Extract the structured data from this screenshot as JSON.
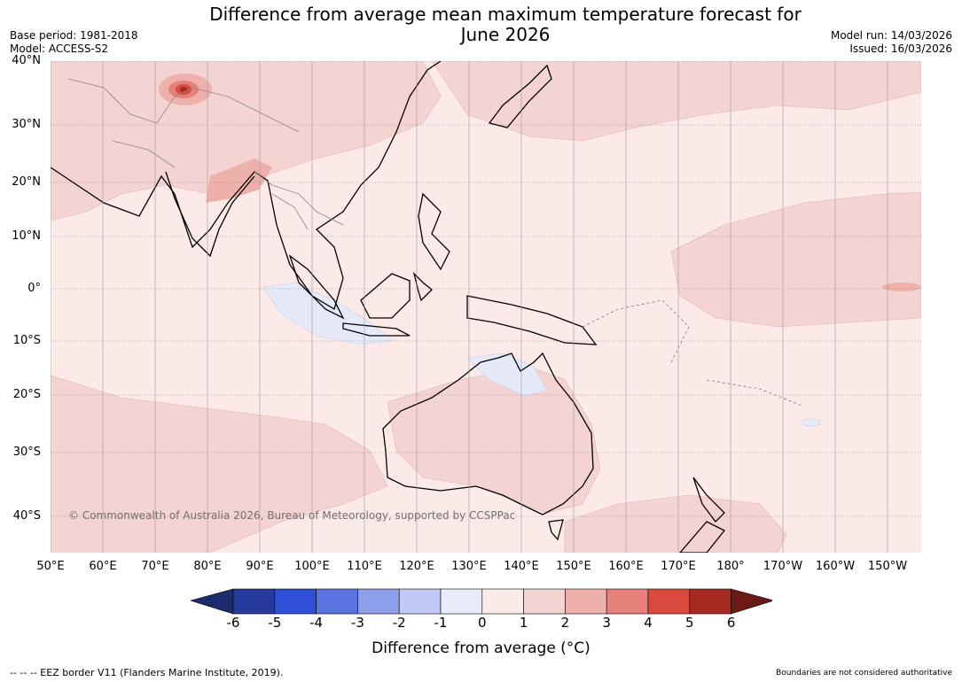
{
  "header": {
    "title_line1": "Difference from average mean maximum temperature forecast for",
    "title_line2": "June 2026",
    "base_period": "Base period: 1981-2018",
    "model": "Model: ACCESS-S2",
    "model_run": "Model run: 14/03/2026",
    "issued": "Issued: 16/03/2026"
  },
  "map": {
    "lat_labels": [
      "40°N",
      "30°N",
      "20°N",
      "10°N",
      "0°",
      "10°S",
      "20°S",
      "30°S",
      "40°S"
    ],
    "lon_labels": [
      "50°E",
      "60°E",
      "70°E",
      "80°E",
      "90°E",
      "100°E",
      "110°E",
      "120°E",
      "130°E",
      "140°E",
      "150°E",
      "160°E",
      "170°E",
      "180°",
      "170°W",
      "160°W",
      "150°W"
    ],
    "copyright": "© Commonwealth of Australia 2026, Bureau of Meteorology, supported by CCSPPac",
    "colors": {
      "ocean_base": "#fbeae8",
      "warm_1_2": "#f4d4d2",
      "warm_2_3": "#eeb0ab",
      "warm_3_4": "#e6807a",
      "warm_4_5": "#d94a3f",
      "warm_5_6": "#a52a22",
      "cool_0_1": "#e6eaf8"
    }
  },
  "colorbar": {
    "ticks": [
      "-6",
      "-5",
      "-4",
      "-3",
      "-2",
      "-1",
      "0",
      "1",
      "2",
      "3",
      "4",
      "5",
      "6"
    ],
    "colors": [
      "#273a9c",
      "#2f4fd6",
      "#5a74e0",
      "#8ea0ea",
      "#c1c9f4",
      "#e8ebf9",
      "#fbeae8",
      "#f4d4d2",
      "#eeb0ab",
      "#e6807a",
      "#d94a3f",
      "#a52a22"
    ],
    "under_color": "#1c2a6e",
    "over_color": "#6b1a15",
    "label": "Difference from average (°C)"
  },
  "footer": {
    "eez_legend": "-- -- -- EEZ border V11 (Flanders Marine Institute, 2019).",
    "disclaimer": "Boundaries are not considered authoritative"
  }
}
